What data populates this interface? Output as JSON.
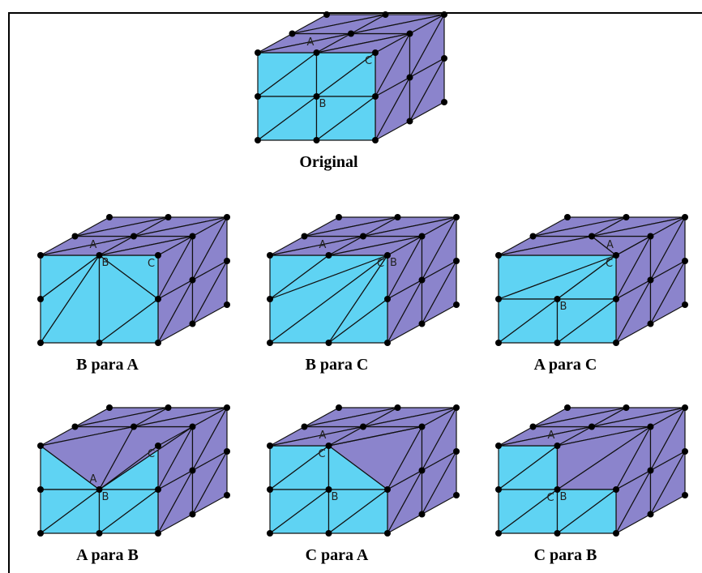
{
  "labels": {
    "a": "A",
    "b": "B",
    "c": "C"
  },
  "panels": [
    {
      "caption": "Original"
    },
    {
      "caption": "B para A"
    },
    {
      "caption": "B para C"
    },
    {
      "caption": "A para C"
    },
    {
      "caption": "A para B"
    },
    {
      "caption": "C para A"
    },
    {
      "caption": "C para B"
    }
  ]
}
